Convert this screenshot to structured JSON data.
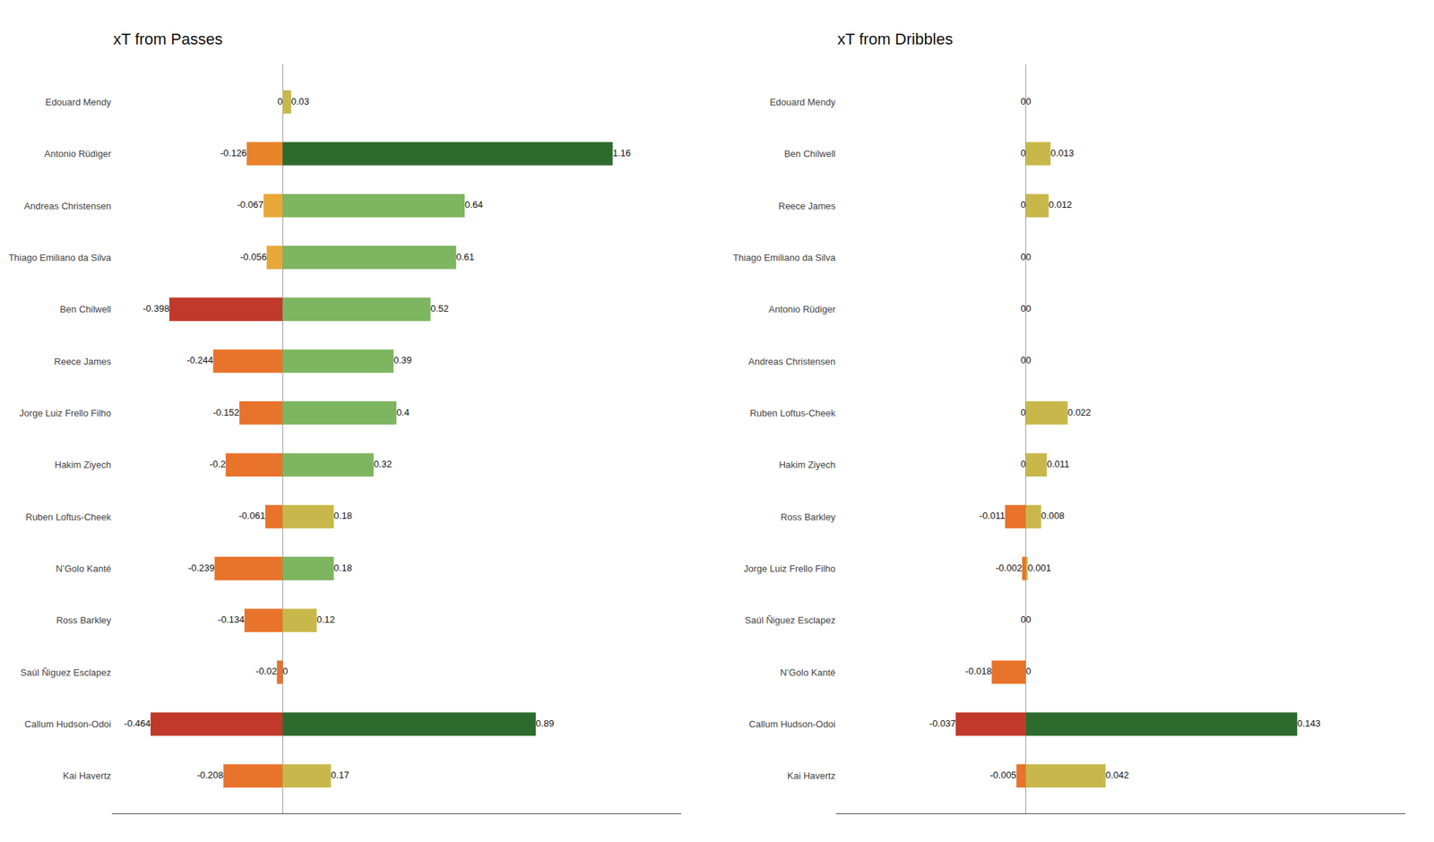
{
  "chart_data": [
    {
      "type": "bar",
      "title": "xT from Passes",
      "orientation": "horizontal",
      "categories": [
        "Edouard Mendy",
        "Antonio Rüdiger",
        "Andreas Christensen",
        "Thiago Emiliano da Silva",
        "Ben Chilwell",
        "Reece James",
        "Jorge Luiz Frello Filho",
        "Hakim Ziyech",
        "Ruben Loftus-Cheek",
        "N’Golo Kanté",
        "Ross Barkley",
        "Saúl Ñiguez Esclapez",
        "Callum Hudson-Odoi",
        "Kai Havertz"
      ],
      "series": [
        {
          "values": [
            0.0,
            -0.126,
            -0.067,
            -0.056,
            -0.398,
            -0.244,
            -0.152,
            -0.2,
            -0.061,
            -0.239,
            -0.134,
            -0.02,
            -0.464,
            -0.208
          ],
          "colors": [
            "#e8a030",
            "#e8832a",
            "#e8a838",
            "#e8a838",
            "#c0392b",
            "#e8732a",
            "#e8732a",
            "#e8732a",
            "#e8732a",
            "#e8732a",
            "#e8732a",
            "#e8732a",
            "#c0392b",
            "#e8732a"
          ]
        },
        {
          "values": [
            0.03,
            1.16,
            0.64,
            0.61,
            0.52,
            0.39,
            0.4,
            0.32,
            0.18,
            0.18,
            0.12,
            0.0,
            0.89,
            0.17
          ],
          "colors": [
            "#c8b84b",
            "#2d6a2d",
            "#7db560",
            "#7db560",
            "#7db560",
            "#7db560",
            "#7db560",
            "#7db560",
            "#c8b84b",
            "#7db560",
            "#c8b84b",
            "#c8b84b",
            "#2d6a2d",
            "#c8b84b"
          ]
        }
      ],
      "xlim": [
        -0.6,
        1.4
      ],
      "grid": false,
      "tick_labels": "y",
      "data_labels": true
    },
    {
      "type": "bar",
      "title": "xT from Dribbles",
      "orientation": "horizontal",
      "categories": [
        "Edouard Mendy",
        "Ben Chilwell",
        "Reece James",
        "Thiago Emiliano da Silva",
        "Antonio Rüdiger",
        "Andreas Christensen",
        "Ruben Loftus-Cheek",
        "Hakim Ziyech",
        "Ross Barkley",
        "Jorge Luiz Frello Filho",
        "Saúl Ñiguez Esclapez",
        "N’Golo Kanté",
        "Callum Hudson-Odoi",
        "Kai Havertz"
      ],
      "series": [
        {
          "values": [
            0.0,
            0.0,
            0.0,
            0.0,
            0.0,
            0.0,
            0.0,
            0.0,
            -0.011,
            -0.002,
            0.0,
            -0.018,
            -0.037,
            -0.005
          ],
          "colors": [
            "#e8732a",
            "#e8732a",
            "#e8732a",
            "#e8732a",
            "#e8732a",
            "#e8732a",
            "#e8732a",
            "#e8732a",
            "#e8732a",
            "#e8732a",
            "#e8732a",
            "#e8732a",
            "#c0392b",
            "#e8732a"
          ]
        },
        {
          "values": [
            0.0,
            0.013,
            0.012,
            0.0,
            0.0,
            0.0,
            0.022,
            0.011,
            0.008,
            0.001,
            0.0,
            0.0,
            0.143,
            0.042
          ],
          "colors": [
            "#c8b84b",
            "#c8b84b",
            "#c8b84b",
            "#c8b84b",
            "#c8b84b",
            "#c8b84b",
            "#c8b84b",
            "#c8b84b",
            "#c8b84b",
            "#c8b84b",
            "#c8b84b",
            "#c8b84b",
            "#2d6a2d",
            "#c8b84b"
          ]
        }
      ],
      "xlim": [
        -0.1,
        0.2
      ],
      "grid": false,
      "tick_labels": "y",
      "data_labels": true
    }
  ]
}
